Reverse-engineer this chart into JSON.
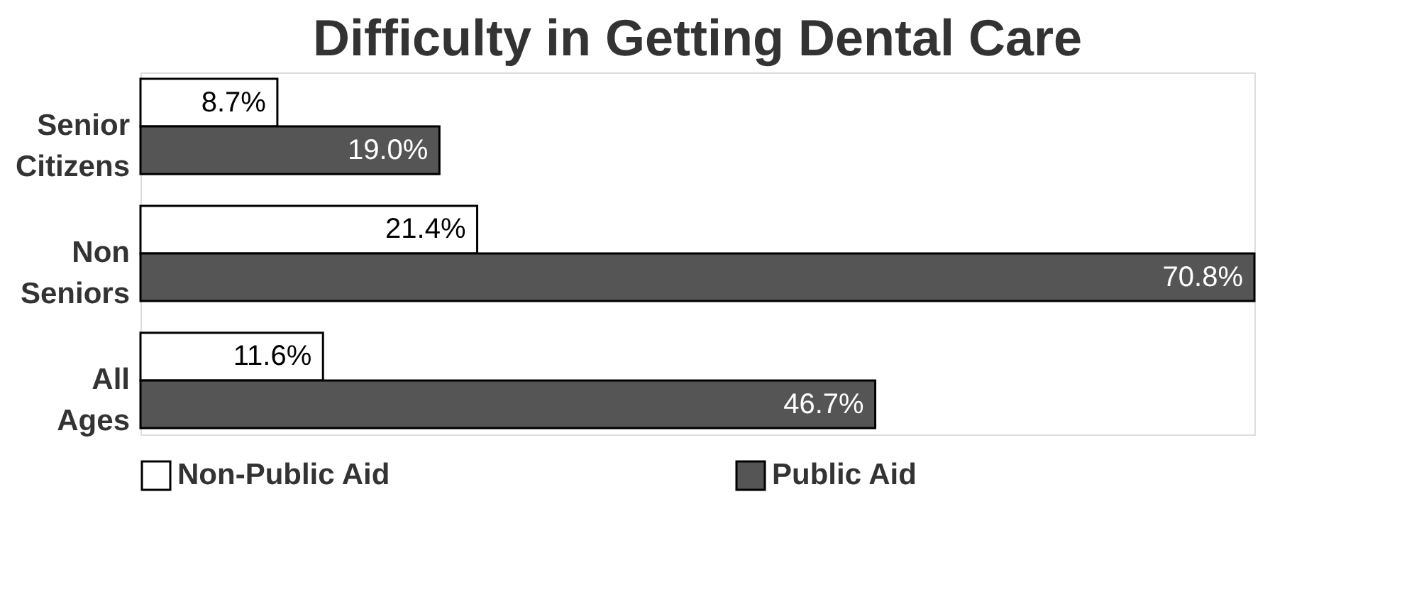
{
  "chart_data": {
    "type": "bar",
    "orientation": "horizontal",
    "title": "Difficulty in Getting Dental Care",
    "categories": [
      "Senior Citizens",
      "Non Seniors",
      "All Ages"
    ],
    "series": [
      {
        "name": "Non-Public Aid",
        "color": "#ffffff",
        "values": [
          8.7,
          21.4,
          11.6
        ],
        "value_labels": [
          "8.7%",
          "21.4%",
          "11.6%"
        ]
      },
      {
        "name": "Public Aid",
        "color": "#555555",
        "values": [
          19.0,
          70.8,
          46.7
        ],
        "value_labels": [
          "19.0%",
          "70.8%",
          "46.7%"
        ]
      }
    ],
    "legend": "bottom",
    "tick_labels": "y",
    "grid": false
  }
}
